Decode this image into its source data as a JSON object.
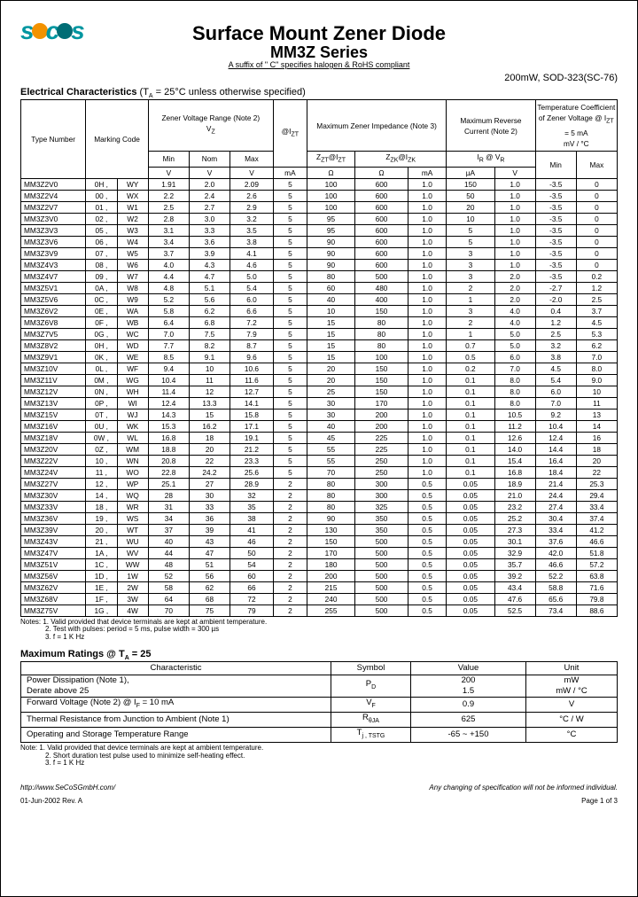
{
  "colors": {
    "teal": "#0096a0",
    "orange": "#f39200",
    "darkteal": "#006d75"
  },
  "header": {
    "title": "Surface Mount Zener Diode",
    "subtitle": "MM3Z Series",
    "suffix": "A suffix of \" C\" specifies halogen & RoHS compliant",
    "pkg": "200mW, SOD-323(SC-76)"
  },
  "elec_head": "Electrical Characteristics",
  "elec_cond": "(T",
  "elec_cond2": " = 25°C  unless otherwise specified)",
  "thead": {
    "type": "Type Number",
    "mark": "Marking Code",
    "vz": "Zener Voltage Range (Note 2)",
    "vzl": "V",
    "izt": "@I",
    "maxz": "Maximum Zener Impedance (Note 3)",
    "rev": "Maximum Reverse Current (Note 2)",
    "tc": "Temperature Coefficient of Zener Voltage @ I",
    "min": "Min",
    "nom": "Nom",
    "max": "Max",
    "v": "V",
    "ma": "mA",
    "ua": "µA",
    "ohm": "Ω",
    "zz": "Z",
    "zzk": "Z",
    "izk": "@I",
    "ir": "I",
    "vr": "V",
    "mvc": "mV / °C"
  },
  "rows": [
    [
      "MM3Z2V0",
      "0H ,",
      "WY",
      "1.91",
      "2.0",
      "2.09",
      "5",
      "100",
      "600",
      "1.0",
      "150",
      "1.0",
      "-3.5",
      "0"
    ],
    [
      "MM3Z2V4",
      "00 ,",
      "WX",
      "2.2",
      "2.4",
      "2.6",
      "5",
      "100",
      "600",
      "1.0",
      "50",
      "1.0",
      "-3.5",
      "0"
    ],
    [
      "MM3Z2V7",
      "01 ,",
      "W1",
      "2.5",
      "2.7",
      "2.9",
      "5",
      "100",
      "600",
      "1.0",
      "20",
      "1.0",
      "-3.5",
      "0"
    ],
    [
      "MM3Z3V0",
      "02 ,",
      "W2",
      "2.8",
      "3.0",
      "3.2",
      "5",
      "95",
      "600",
      "1.0",
      "10",
      "1.0",
      "-3.5",
      "0"
    ],
    [
      "MM3Z3V3",
      "05 ,",
      "W3",
      "3.1",
      "3.3",
      "3.5",
      "5",
      "95",
      "600",
      "1.0",
      "5",
      "1.0",
      "-3.5",
      "0"
    ],
    [
      "MM3Z3V6",
      "06 ,",
      "W4",
      "3.4",
      "3.6",
      "3.8",
      "5",
      "90",
      "600",
      "1.0",
      "5",
      "1.0",
      "-3.5",
      "0"
    ],
    [
      "MM3Z3V9",
      "07 ,",
      "W5",
      "3.7",
      "3.9",
      "4.1",
      "5",
      "90",
      "600",
      "1.0",
      "3",
      "1.0",
      "-3.5",
      "0"
    ],
    [
      "MM3Z4V3",
      "08 ,",
      "W6",
      "4.0",
      "4.3",
      "4.6",
      "5",
      "90",
      "600",
      "1.0",
      "3",
      "1.0",
      "-3.5",
      "0"
    ],
    [
      "MM3Z4V7",
      "09 ,",
      "W7",
      "4.4",
      "4.7",
      "5.0",
      "5",
      "80",
      "500",
      "1.0",
      "3",
      "2.0",
      "-3.5",
      "0.2"
    ],
    [
      "MM3Z5V1",
      "0A ,",
      "W8",
      "4.8",
      "5.1",
      "5.4",
      "5",
      "60",
      "480",
      "1.0",
      "2",
      "2.0",
      "-2.7",
      "1.2"
    ],
    [
      "MM3Z5V6",
      "0C ,",
      "W9",
      "5.2",
      "5.6",
      "6.0",
      "5",
      "40",
      "400",
      "1.0",
      "1",
      "2.0",
      "-2.0",
      "2.5"
    ],
    [
      "MM3Z6V2",
      "0E ,",
      "WA",
      "5.8",
      "6.2",
      "6.6",
      "5",
      "10",
      "150",
      "1.0",
      "3",
      "4.0",
      "0.4",
      "3.7"
    ],
    [
      "MM3Z6V8",
      "0F ,",
      "WB",
      "6.4",
      "6.8",
      "7.2",
      "5",
      "15",
      "80",
      "1.0",
      "2",
      "4.0",
      "1.2",
      "4.5"
    ],
    [
      "MM3Z7V5",
      "0G ,",
      "WC",
      "7.0",
      "7.5",
      "7.9",
      "5",
      "15",
      "80",
      "1.0",
      "1",
      "5.0",
      "2.5",
      "5.3"
    ],
    [
      "MM3Z8V2",
      "0H ,",
      "WD",
      "7.7",
      "8.2",
      "8.7",
      "5",
      "15",
      "80",
      "1.0",
      "0.7",
      "5.0",
      "3.2",
      "6.2"
    ],
    [
      "MM3Z9V1",
      "0K ,",
      "WE",
      "8.5",
      "9.1",
      "9.6",
      "5",
      "15",
      "100",
      "1.0",
      "0.5",
      "6.0",
      "3.8",
      "7.0"
    ],
    [
      "MM3Z10V",
      "0L ,",
      "WF",
      "9.4",
      "10",
      "10.6",
      "5",
      "20",
      "150",
      "1.0",
      "0.2",
      "7.0",
      "4.5",
      "8.0"
    ],
    [
      "MM3Z11V",
      "0M ,",
      "WG",
      "10.4",
      "11",
      "11.6",
      "5",
      "20",
      "150",
      "1.0",
      "0.1",
      "8.0",
      "5.4",
      "9.0"
    ],
    [
      "MM3Z12V",
      "0N ,",
      "WH",
      "11.4",
      "12",
      "12.7",
      "5",
      "25",
      "150",
      "1.0",
      "0.1",
      "8.0",
      "6.0",
      "10"
    ],
    [
      "MM3Z13V",
      "0P ,",
      "WI",
      "12.4",
      "13.3",
      "14.1",
      "5",
      "30",
      "170",
      "1.0",
      "0.1",
      "8.0",
      "7.0",
      "11"
    ],
    [
      "MM3Z15V",
      "0T ,",
      "WJ",
      "14.3",
      "15",
      "15.8",
      "5",
      "30",
      "200",
      "1.0",
      "0.1",
      "10.5",
      "9.2",
      "13"
    ],
    [
      "MM3Z16V",
      "0U ,",
      "WK",
      "15.3",
      "16.2",
      "17.1",
      "5",
      "40",
      "200",
      "1.0",
      "0.1",
      "11.2",
      "10.4",
      "14"
    ],
    [
      "MM3Z18V",
      "0W ,",
      "WL",
      "16.8",
      "18",
      "19.1",
      "5",
      "45",
      "225",
      "1.0",
      "0.1",
      "12.6",
      "12.4",
      "16"
    ],
    [
      "MM3Z20V",
      "0Z ,",
      "WM",
      "18.8",
      "20",
      "21.2",
      "5",
      "55",
      "225",
      "1.0",
      "0.1",
      "14.0",
      "14.4",
      "18"
    ],
    [
      "MM3Z22V",
      "10 ,",
      "WN",
      "20.8",
      "22",
      "23.3",
      "5",
      "55",
      "250",
      "1.0",
      "0.1",
      "15.4",
      "16.4",
      "20"
    ],
    [
      "MM3Z24V",
      "11 ,",
      "WO",
      "22.8",
      "24.2",
      "25.6",
      "5",
      "70",
      "250",
      "1.0",
      "0.1",
      "16.8",
      "18.4",
      "22"
    ],
    [
      "MM3Z27V",
      "12 ,",
      "WP",
      "25.1",
      "27",
      "28.9",
      "2",
      "80",
      "300",
      "0.5",
      "0.05",
      "18.9",
      "21.4",
      "25.3"
    ],
    [
      "MM3Z30V",
      "14 ,",
      "WQ",
      "28",
      "30",
      "32",
      "2",
      "80",
      "300",
      "0.5",
      "0.05",
      "21.0",
      "24.4",
      "29.4"
    ],
    [
      "MM3Z33V",
      "18 ,",
      "WR",
      "31",
      "33",
      "35",
      "2",
      "80",
      "325",
      "0.5",
      "0.05",
      "23.2",
      "27.4",
      "33.4"
    ],
    [
      "MM3Z36V",
      "19 ,",
      "WS",
      "34",
      "36",
      "38",
      "2",
      "90",
      "350",
      "0.5",
      "0.05",
      "25.2",
      "30.4",
      "37.4"
    ],
    [
      "MM3Z39V",
      "20 ,",
      "WT",
      "37",
      "39",
      "41",
      "2",
      "130",
      "350",
      "0.5",
      "0.05",
      "27.3",
      "33.4",
      "41.2"
    ],
    [
      "MM3Z43V",
      "21 ,",
      "WU",
      "40",
      "43",
      "46",
      "2",
      "150",
      "500",
      "0.5",
      "0.05",
      "30.1",
      "37.6",
      "46.6"
    ],
    [
      "MM3Z47V",
      "1A ,",
      "WV",
      "44",
      "47",
      "50",
      "2",
      "170",
      "500",
      "0.5",
      "0.05",
      "32.9",
      "42.0",
      "51.8"
    ],
    [
      "MM3Z51V",
      "1C ,",
      "WW",
      "48",
      "51",
      "54",
      "2",
      "180",
      "500",
      "0.5",
      "0.05",
      "35.7",
      "46.6",
      "57.2"
    ],
    [
      "MM3Z56V",
      "1D ,",
      "1W",
      "52",
      "56",
      "60",
      "2",
      "200",
      "500",
      "0.5",
      "0.05",
      "39.2",
      "52.2",
      "63.8"
    ],
    [
      "MM3Z62V",
      "1E ,",
      "2W",
      "58",
      "62",
      "66",
      "2",
      "215",
      "500",
      "0.5",
      "0.05",
      "43.4",
      "58.8",
      "71.6"
    ],
    [
      "MM3Z68V",
      "1F ,",
      "3W",
      "64",
      "68",
      "72",
      "2",
      "240",
      "500",
      "0.5",
      "0.05",
      "47.6",
      "65.6",
      "79.8"
    ],
    [
      "MM3Z75V",
      "1G ,",
      "4W",
      "70",
      "75",
      "79",
      "2",
      "255",
      "500",
      "0.5",
      "0.05",
      "52.5",
      "73.4",
      "88.6"
    ]
  ],
  "notes1": "Notes:  1. Valid provided that device terminals are kept at ambient temperature.",
  "notes2": "2. Test with pulses: period = 5 ms, pulse width = 300 µs",
  "notes3": "3. f = 1 K Hz",
  "max_head": "Maximum Ratings @ T",
  "max_head2": " = 25",
  "max_th": {
    "char": "Characteristic",
    "sym": "Symbol",
    "val": "Value",
    "unit": "Unit"
  },
  "max_rows": [
    {
      "char": "Power Dissipation (Note 1),\nDerate above 25",
      "sym": "P",
      "sub": "D",
      "val": "200\n1.5",
      "unit": "mW\nmW / °C"
    },
    {
      "char": "Forward Voltage (Note 2) @ I",
      "char2": " = 10 mA",
      "sub1": "F",
      "sym": "V",
      "sub": "F",
      "val": "0.9",
      "unit": "V"
    },
    {
      "char": "Thermal Resistance from Junction to Ambient (Note 1)",
      "sym": "R",
      "sub": "θJA",
      "val": "625",
      "unit": "°C / W"
    },
    {
      "char": "Operating and Storage Temperature Range",
      "sym": "T",
      "sub": "j , T",
      "sub2": "STG",
      "val": "-65 ~ +150",
      "unit": "°C"
    }
  ],
  "notes_m1": "Note: 1. Valid provided that device terminals are kept at ambient temperature.",
  "notes_m2": "2. Short duration test pulse used to minimize self-heating effect.",
  "notes_m3": "3. f = 1 K Hz",
  "footer": {
    "url": "http://www.SeCoSGmbH.com/",
    "change": "Any changing of specification will not be informed individual.",
    "date": "01-Jun-2002 Rev. A",
    "page": "Page 1 of 3"
  }
}
